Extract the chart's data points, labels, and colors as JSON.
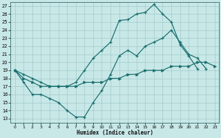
{
  "xlabel": "Humidex (Indice chaleur)",
  "xlim": [
    -0.5,
    23.5
  ],
  "ylim": [
    12.5,
    27.5
  ],
  "yticks": [
    13,
    14,
    15,
    16,
    17,
    18,
    19,
    20,
    21,
    22,
    23,
    24,
    25,
    26,
    27
  ],
  "xticks": [
    0,
    1,
    2,
    3,
    4,
    5,
    6,
    7,
    8,
    9,
    10,
    11,
    12,
    13,
    14,
    15,
    16,
    17,
    18,
    19,
    20,
    21,
    22,
    23
  ],
  "bg_color": "#c8e8e8",
  "grid_color": "#a0c8c8",
  "line_color": "#1a6e6e",
  "line_max_x": [
    0,
    1,
    2,
    3,
    4,
    5,
    6,
    7,
    8,
    9,
    10,
    11,
    12,
    13,
    14,
    15,
    16,
    17,
    18,
    19,
    20,
    21,
    22,
    23
  ],
  "line_max_y": [
    19,
    18.5,
    18,
    17.5,
    17,
    17,
    17,
    17.5,
    19,
    20.5,
    21.5,
    22.5,
    25.2,
    25.3,
    26.0,
    26.2,
    27.2,
    26.0,
    25.0,
    22.2,
    20.8,
    19.2,
    null,
    null
  ],
  "line_mid_x": [
    0,
    1,
    2,
    3,
    4,
    5,
    6,
    7,
    8,
    9,
    10,
    11,
    12,
    13,
    14,
    15,
    16,
    17,
    18,
    19,
    20,
    21,
    22,
    23
  ],
  "line_mid_y": [
    19,
    18,
    17.5,
    17,
    17,
    17,
    17,
    17,
    17.5,
    17.5,
    17.5,
    18,
    18,
    18.5,
    18.5,
    19,
    19,
    19,
    19.5,
    19.5,
    19.5,
    20,
    20,
    19.5
  ],
  "line_min_x": [
    0,
    1,
    2,
    3,
    4,
    5,
    6,
    7,
    8,
    9,
    10,
    11,
    12,
    13,
    14,
    15,
    16,
    17,
    18,
    19,
    20,
    21,
    22,
    23
  ],
  "line_min_y": [
    19,
    17.5,
    16,
    16,
    15.5,
    15,
    14,
    13.2,
    13.2,
    15,
    16.5,
    18.5,
    20.8,
    21.5,
    20.8,
    22,
    22.5,
    23,
    24.0,
    22.5,
    21,
    20.5,
    19.2,
    null
  ]
}
